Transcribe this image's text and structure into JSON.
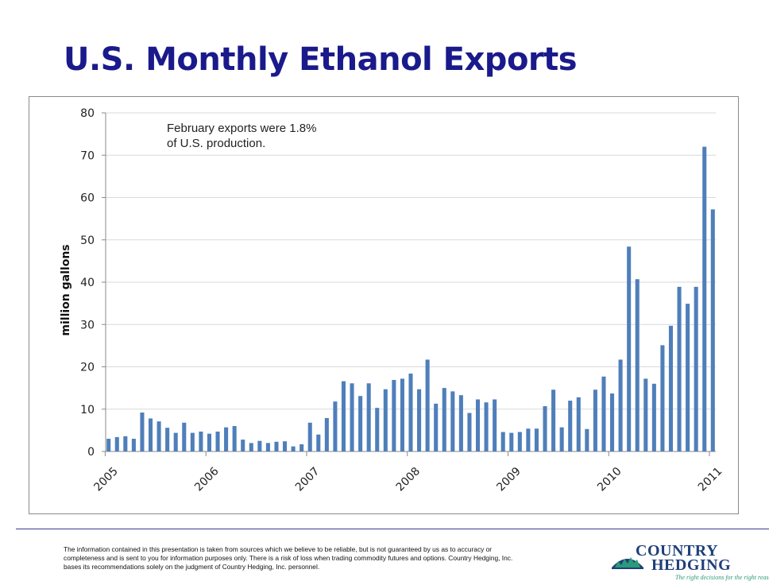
{
  "slide": {
    "title": "U.S. Monthly Ethanol Exports",
    "annotation": "February exports were 1.8% of U.S. production.",
    "disclaimer": "The information contained in this presentation is taken from sources which we believe to be reliable, but is not guaranteed by us as to accuracy or completeness and is sent to you for information purposes only. There is a risk of loss when trading commodity futures and options. Country Hedging, Inc. bases its recommendations solely on the judgment of Country Hedging, Inc. personnel."
  },
  "logo": {
    "line1": "COUNTRY",
    "line2": "HEDGING",
    "tagline": "The right decisions for the right reasons."
  },
  "colors": {
    "title": "#1a1a8c",
    "bar": "#4f7fba",
    "grid": "#d9d9d9"
  },
  "chart_data": {
    "type": "bar",
    "title": "",
    "xlabel": "",
    "ylabel": "million gallons",
    "ylim": [
      0,
      80
    ],
    "yticks": [
      0,
      10,
      20,
      30,
      40,
      50,
      60,
      70,
      80
    ],
    "grid": true,
    "x_start": "2005-01",
    "x_ticks": [
      "2005",
      "2006",
      "2007",
      "2008",
      "2009",
      "2010",
      "2011"
    ],
    "series": [
      {
        "name": "U.S. Monthly Ethanol Exports",
        "values": [
          3.0,
          3.4,
          3.6,
          3.0,
          9.2,
          7.8,
          7.1,
          5.6,
          4.4,
          6.8,
          4.4,
          4.7,
          4.2,
          4.7,
          5.7,
          6.0,
          2.8,
          2.0,
          2.5,
          2.0,
          2.3,
          2.4,
          1.2,
          1.7,
          6.8,
          4.0,
          7.9,
          11.8,
          16.6,
          16.1,
          13.1,
          16.1,
          10.3,
          14.7,
          16.9,
          17.2,
          18.4,
          14.7,
          21.7,
          11.3,
          15.0,
          14.2,
          13.3,
          9.1,
          12.3,
          11.6,
          12.3,
          4.6,
          4.4,
          4.6,
          5.4,
          5.4,
          10.7,
          14.6,
          5.7,
          12.0,
          12.8,
          5.3,
          14.6,
          17.7,
          13.7,
          21.7,
          48.4,
          40.7,
          17.2,
          16.0,
          25.1,
          29.7,
          38.9,
          34.9,
          38.9,
          72.0,
          57.2
        ]
      }
    ]
  }
}
